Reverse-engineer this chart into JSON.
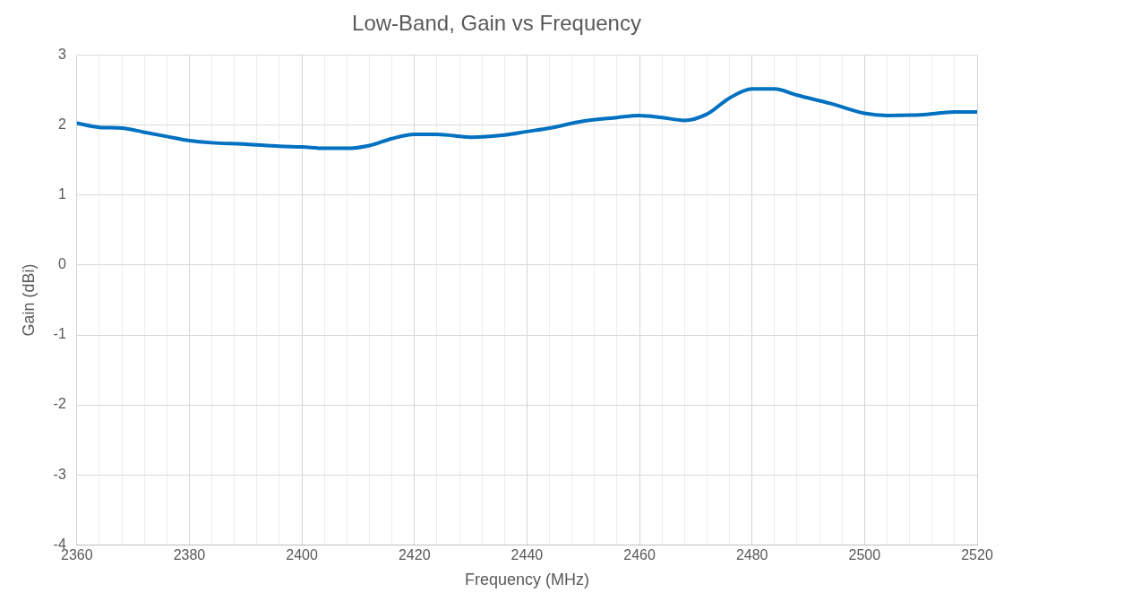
{
  "chart_data": {
    "type": "line",
    "title": "Low-Band, Gain vs Frequency",
    "xlabel": "Frequency (MHz)",
    "ylabel": "Gain (dBi)",
    "xlim": [
      2360,
      2520
    ],
    "xticks": [
      2360,
      {
        "value": 2364,
        "label": null
      },
      {
        "value": 2368,
        "label": null
      },
      {
        "value": 2372,
        "label": null
      },
      {
        "value": 2376,
        "label": null
      },
      2380,
      {
        "value": 2384,
        "label": null
      },
      {
        "value": 2388,
        "label": null
      },
      {
        "value": 2392,
        "label": null
      },
      {
        "value": 2396,
        "label": null
      },
      2400,
      {
        "value": 2404,
        "label": null
      },
      {
        "value": 2408,
        "label": null
      },
      {
        "value": 2412,
        "label": null
      },
      {
        "value": 2416,
        "label": null
      },
      2420,
      {
        "value": 2424,
        "label": null
      },
      {
        "value": 2428,
        "label": null
      },
      {
        "value": 2432,
        "label": null
      },
      {
        "value": 2436,
        "label": null
      },
      2440,
      {
        "value": 2444,
        "label": null
      },
      {
        "value": 2448,
        "label": null
      },
      {
        "value": 2452,
        "label": null
      },
      {
        "value": 2456,
        "label": null
      },
      2460,
      {
        "value": 2464,
        "label": null
      },
      {
        "value": 2468,
        "label": null
      },
      {
        "value": 2472,
        "label": null
      },
      {
        "value": 2476,
        "label": null
      },
      2480,
      {
        "value": 2484,
        "label": null
      },
      {
        "value": 2488,
        "label": null
      },
      {
        "value": 2492,
        "label": null
      },
      {
        "value": 2496,
        "label": null
      },
      2500,
      {
        "value": 2504,
        "label": null
      },
      {
        "value": 2508,
        "label": null
      },
      {
        "value": 2512,
        "label": null
      },
      {
        "value": 2516,
        "label": null
      },
      2520
    ],
    "ylim": [
      -4,
      3
    ],
    "yticks": [
      -4,
      -3,
      -2,
      -1,
      0,
      1,
      2,
      3
    ],
    "grid": true,
    "marker": "none",
    "line_style": "solid",
    "x": [
      2360,
      2364,
      2368,
      2372,
      2376,
      2380,
      2384,
      2390,
      2396,
      2400,
      2404,
      2408,
      2412,
      2416,
      2420,
      2424,
      2430,
      2436,
      2440,
      2444,
      2450,
      2456,
      2460,
      2464,
      2468,
      2472,
      2476,
      2480,
      2484,
      2488,
      2494,
      2500,
      2504,
      2510,
      2516,
      2520
    ],
    "series": [
      {
        "color": "#0070c0",
        "values": [
          2.03,
          1.97,
          1.96,
          1.9,
          1.84,
          1.78,
          1.75,
          1.73,
          1.7,
          1.69,
          1.67,
          1.67,
          1.71,
          1.81,
          1.87,
          1.87,
          1.83,
          1.86,
          1.91,
          1.96,
          2.06,
          2.11,
          2.14,
          2.11,
          2.07,
          2.16,
          2.39,
          2.52,
          2.52,
          2.43,
          2.31,
          2.17,
          2.14,
          2.15,
          2.19,
          2.19
        ]
      }
    ]
  }
}
